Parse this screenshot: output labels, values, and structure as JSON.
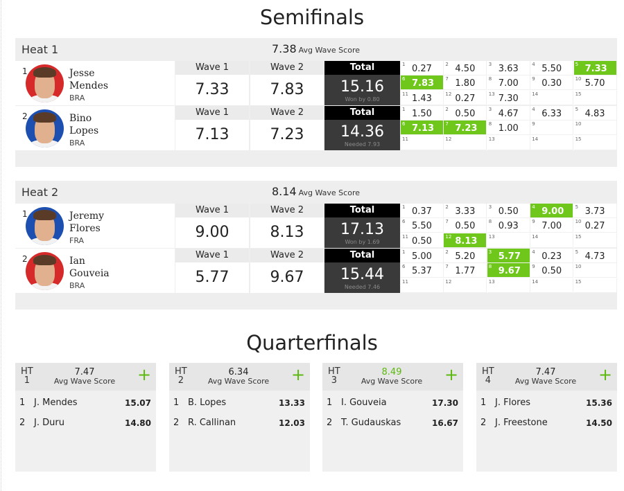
{
  "semifinals": {
    "title": "Semifinals",
    "heats": [
      {
        "name": "Heat 1",
        "avg": "7.38",
        "avg_label": "Avg Wave Score",
        "athletes": [
          {
            "seed": "1",
            "first": "Jesse",
            "last": "Mendes",
            "country": "BRA",
            "wave1_label": "Wave 1",
            "wave1": "7.33",
            "wave2_label": "Wave 2",
            "wave2": "7.83",
            "total_label": "Total",
            "total": "15.16",
            "note": "Won by 0.80",
            "jersey_color": "#d62a2a",
            "waves": [
              {
                "i": "1",
                "s": "0.27",
                "hl": false
              },
              {
                "i": "2",
                "s": "4.50",
                "hl": false
              },
              {
                "i": "3",
                "s": "3.63",
                "hl": false
              },
              {
                "i": "4",
                "s": "5.50",
                "hl": false
              },
              {
                "i": "5",
                "s": "7.33",
                "hl": true
              },
              {
                "i": "6",
                "s": "7.83",
                "hl": true
              },
              {
                "i": "7",
                "s": "1.80",
                "hl": false
              },
              {
                "i": "8",
                "s": "7.00",
                "hl": false
              },
              {
                "i": "9",
                "s": "0.30",
                "hl": false
              },
              {
                "i": "10",
                "s": "5.70",
                "hl": false
              },
              {
                "i": "11",
                "s": "1.43",
                "hl": false
              },
              {
                "i": "12",
                "s": "0.27",
                "hl": false
              },
              {
                "i": "13",
                "s": "7.30",
                "hl": false
              },
              {
                "i": "14",
                "s": "",
                "hl": false
              },
              {
                "i": "15",
                "s": "",
                "hl": false
              }
            ]
          },
          {
            "seed": "2",
            "first": "Bino",
            "last": "Lopes",
            "country": "BRA",
            "wave1_label": "Wave 1",
            "wave1": "7.13",
            "wave2_label": "Wave 2",
            "wave2": "7.23",
            "total_label": "Total",
            "total": "14.36",
            "note": "Needed 7.93",
            "jersey_color": "#1d4fb0",
            "waves": [
              {
                "i": "1",
                "s": "1.50",
                "hl": false
              },
              {
                "i": "2",
                "s": "0.50",
                "hl": false
              },
              {
                "i": "3",
                "s": "4.67",
                "hl": false
              },
              {
                "i": "4",
                "s": "6.33",
                "hl": false
              },
              {
                "i": "5",
                "s": "4.83",
                "hl": false
              },
              {
                "i": "6",
                "s": "7.13",
                "hl": true
              },
              {
                "i": "7",
                "s": "7.23",
                "hl": true
              },
              {
                "i": "8",
                "s": "1.00",
                "hl": false
              },
              {
                "i": "9",
                "s": "",
                "hl": false
              },
              {
                "i": "10",
                "s": "",
                "hl": false
              },
              {
                "i": "11",
                "s": "",
                "hl": false
              },
              {
                "i": "12",
                "s": "",
                "hl": false
              },
              {
                "i": "13",
                "s": "",
                "hl": false
              },
              {
                "i": "14",
                "s": "",
                "hl": false
              },
              {
                "i": "15",
                "s": "",
                "hl": false
              }
            ]
          }
        ]
      },
      {
        "name": "Heat 2",
        "avg": "8.14",
        "avg_label": "Avg Wave Score",
        "athletes": [
          {
            "seed": "1",
            "first": "Jeremy",
            "last": "Flores",
            "country": "FRA",
            "wave1_label": "Wave 1",
            "wave1": "9.00",
            "wave2_label": "Wave 2",
            "wave2": "8.13",
            "total_label": "Total",
            "total": "17.13",
            "note": "Won by 1.69",
            "jersey_color": "#1d4fb0",
            "waves": [
              {
                "i": "1",
                "s": "0.37",
                "hl": false
              },
              {
                "i": "2",
                "s": "3.33",
                "hl": false
              },
              {
                "i": "3",
                "s": "0.50",
                "hl": false
              },
              {
                "i": "4",
                "s": "9.00",
                "hl": true
              },
              {
                "i": "5",
                "s": "3.73",
                "hl": false
              },
              {
                "i": "6",
                "s": "5.50",
                "hl": false
              },
              {
                "i": "7",
                "s": "0.50",
                "hl": false
              },
              {
                "i": "8",
                "s": "0.93",
                "hl": false
              },
              {
                "i": "9",
                "s": "7.00",
                "hl": false
              },
              {
                "i": "10",
                "s": "0.27",
                "hl": false
              },
              {
                "i": "11",
                "s": "0.50",
                "hl": false
              },
              {
                "i": "12",
                "s": "8.13",
                "hl": true
              },
              {
                "i": "13",
                "s": "",
                "hl": false
              },
              {
                "i": "14",
                "s": "",
                "hl": false
              },
              {
                "i": "15",
                "s": "",
                "hl": false
              }
            ]
          },
          {
            "seed": "2",
            "first": "Ian",
            "last": "Gouveia",
            "country": "BRA",
            "wave1_label": "Wave 1",
            "wave1": "5.77",
            "wave2_label": "Wave 2",
            "wave2": "9.67",
            "total_label": "Total",
            "total": "15.44",
            "note": "Needed 7.46",
            "jersey_color": "#d62a2a",
            "waves": [
              {
                "i": "1",
                "s": "5.00",
                "hl": false
              },
              {
                "i": "2",
                "s": "5.20",
                "hl": false
              },
              {
                "i": "3",
                "s": "5.77",
                "hl": true
              },
              {
                "i": "4",
                "s": "0.23",
                "hl": false
              },
              {
                "i": "5",
                "s": "4.73",
                "hl": false
              },
              {
                "i": "6",
                "s": "5.37",
                "hl": false
              },
              {
                "i": "7",
                "s": "1.77",
                "hl": false
              },
              {
                "i": "8",
                "s": "9.67",
                "hl": true
              },
              {
                "i": "9",
                "s": "0.50",
                "hl": false
              },
              {
                "i": "10",
                "s": "",
                "hl": false
              },
              {
                "i": "11",
                "s": "",
                "hl": false
              },
              {
                "i": "12",
                "s": "",
                "hl": false
              },
              {
                "i": "13",
                "s": "",
                "hl": false
              },
              {
                "i": "14",
                "s": "",
                "hl": false
              },
              {
                "i": "15",
                "s": "",
                "hl": false
              }
            ]
          }
        ]
      }
    ]
  },
  "quarterfinals": {
    "title": "Quarterfinals",
    "heats": [
      {
        "ht": "HT",
        "num": "1",
        "avg": "7.47",
        "avg_label": "Avg Wave Score",
        "highlight": false,
        "plus": "+",
        "rows": [
          {
            "seed": "1",
            "name": "J. Mendes",
            "score": "15.07"
          },
          {
            "seed": "2",
            "name": "J. Duru",
            "score": "14.80"
          }
        ]
      },
      {
        "ht": "HT",
        "num": "2",
        "avg": "6.34",
        "avg_label": "Avg Wave Score",
        "highlight": false,
        "plus": "+",
        "rows": [
          {
            "seed": "1",
            "name": "B. Lopes",
            "score": "13.33"
          },
          {
            "seed": "2",
            "name": "R. Callinan",
            "score": "12.03"
          }
        ]
      },
      {
        "ht": "HT",
        "num": "3",
        "avg": "8.49",
        "avg_label": "Avg Wave Score",
        "highlight": true,
        "plus": "+",
        "rows": [
          {
            "seed": "1",
            "name": "I. Gouveia",
            "score": "17.30"
          },
          {
            "seed": "2",
            "name": "T. Gudauskas",
            "score": "16.67"
          }
        ]
      },
      {
        "ht": "HT",
        "num": "4",
        "avg": "7.47",
        "avg_label": "Avg Wave Score",
        "highlight": false,
        "plus": "+",
        "rows": [
          {
            "seed": "1",
            "name": "J. Flores",
            "score": "15.36"
          },
          {
            "seed": "2",
            "name": "J. Freestone",
            "score": "14.50"
          }
        ]
      }
    ]
  },
  "colors": {
    "accent_green": "#6fc71c",
    "total_bg": "#3a3a3a",
    "header_bg": "#000000"
  }
}
